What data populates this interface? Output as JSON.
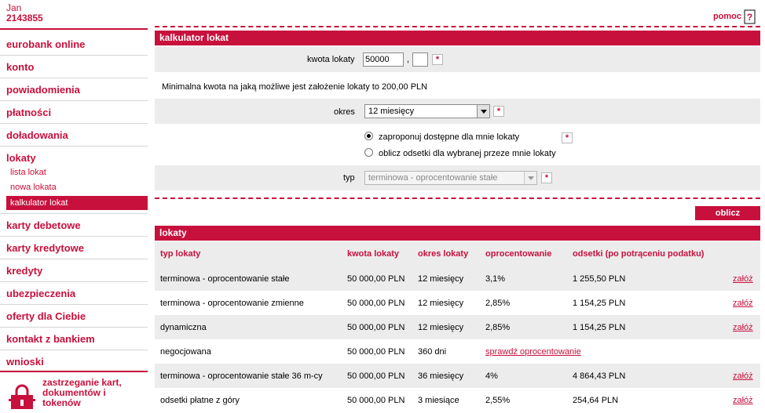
{
  "user": {
    "name": "Jan",
    "number": "2143855"
  },
  "sidebar": {
    "items": [
      {
        "label": "eurobank online"
      },
      {
        "label": "konto"
      },
      {
        "label": "powiadomienia"
      },
      {
        "label": "płatności"
      },
      {
        "label": "doładowania"
      },
      {
        "label": "lokaty"
      },
      {
        "label": "karty debetowe"
      },
      {
        "label": "karty kredytowe"
      },
      {
        "label": "kredyty"
      },
      {
        "label": "ubezpieczenia"
      },
      {
        "label": "oferty dla Ciebie"
      },
      {
        "label": "kontakt z bankiem"
      },
      {
        "label": "wnioski"
      }
    ],
    "lokaty_sub": [
      {
        "label": "lista lokat"
      },
      {
        "label": "nowa lokata"
      },
      {
        "label": "kalkulator lokat",
        "active": true
      }
    ],
    "bottom_link": "zastrzeganie kart, dokumentów i tokenów"
  },
  "header": {
    "help_label": "pomoc"
  },
  "calculator": {
    "title": "kalkulator lokat",
    "amount_label": "kwota lokaty",
    "amount_value": "50000",
    "amount_separator": ",",
    "amount_cents": "",
    "min_info": "Minimalna kwota na jaką możliwe jest założenie lokaty to 200,00 PLN",
    "period_label": "okres",
    "period_value": "12 miesięcy",
    "radio_1": "zaproponuj dostępne dla mnie lokaty",
    "radio_2": "oblicz odsetki dla wybranej przeze mnie lokaty",
    "type_label": "typ",
    "type_value": "terminowa - oprocentowanie stałe",
    "required_mark": "*",
    "submit_label": "oblicz"
  },
  "results": {
    "title": "lokaty",
    "columns": [
      "typ lokaty",
      "kwota lokaty",
      "okres lokaty",
      "oprocentowanie",
      "odsetki (po potrąceniu podatku)"
    ],
    "rows": [
      {
        "type": "terminowa - oprocentowanie stałe",
        "amount": "50 000,00 PLN",
        "period": "12 miesięcy",
        "rate": "3,1%",
        "interest": "1 255,50 PLN",
        "action": "załóż"
      },
      {
        "type": "terminowa - oprocentowanie zmienne",
        "amount": "50 000,00 PLN",
        "period": "12 miesięcy",
        "rate": "2,85%",
        "interest": "1 154,25 PLN",
        "action": "załóż"
      },
      {
        "type": "dynamiczna",
        "amount": "50 000,00 PLN",
        "period": "12 miesięcy",
        "rate": "2,85%",
        "interest": "1 154,25 PLN",
        "action": "załóż"
      },
      {
        "type": "negocjowana",
        "amount": "50 000,00 PLN",
        "period": "360 dni",
        "rate_link": "sprawdź oprocentowanie"
      },
      {
        "type": "terminowa - oprocentowanie stałe 36 m-cy",
        "amount": "50 000,00 PLN",
        "period": "36 miesięcy",
        "rate": "4%",
        "interest": "4 864,43 PLN",
        "action": "załóż"
      },
      {
        "type": "odsetki płatne z góry",
        "amount": "50 000,00 PLN",
        "period": "3 miesiące",
        "rate": "2,55%",
        "interest": "254,64 PLN",
        "action": "załóż"
      }
    ]
  },
  "colors": {
    "accent": "#c8103c",
    "row_gray": "#ececec"
  }
}
